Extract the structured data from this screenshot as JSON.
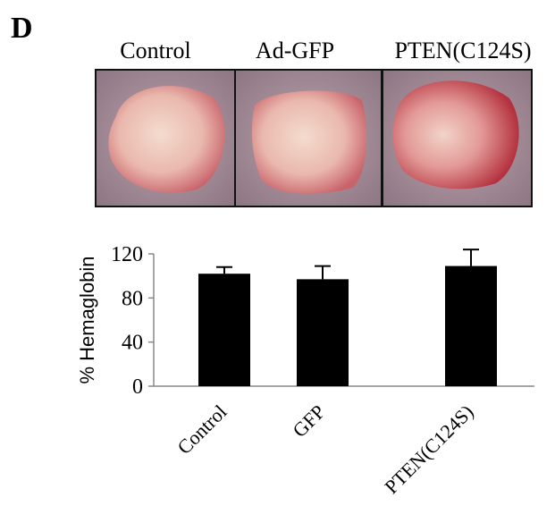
{
  "panel_label": "D",
  "image_labels": [
    "Control",
    "Ad-GFP",
    "PTEN(C124S)"
  ],
  "chart_data": {
    "type": "bar",
    "ylabel": "% Hemaglobin",
    "categories": [
      "Control",
      "GFP",
      "PTEN(C124S)"
    ],
    "values": [
      102,
      97,
      109
    ],
    "errors": [
      6,
      12,
      15
    ],
    "color": "#000000",
    "ylim": [
      0,
      120
    ],
    "yticks": [
      0,
      40,
      80,
      120
    ]
  }
}
